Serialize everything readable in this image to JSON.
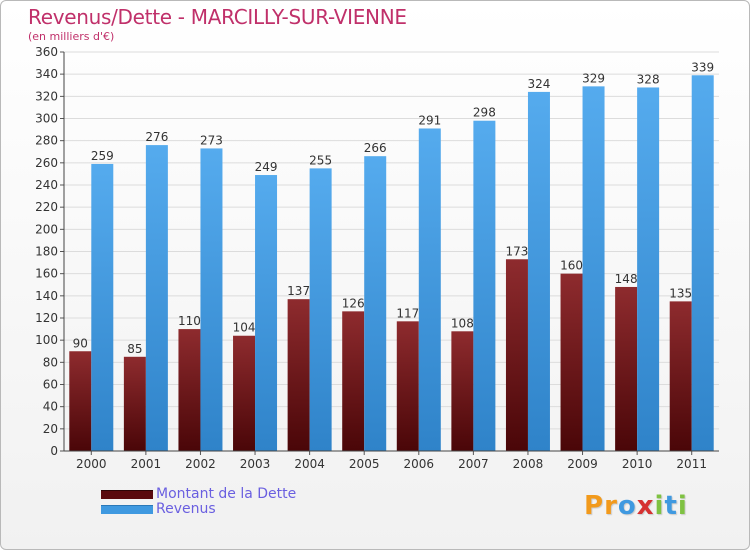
{
  "title": "Revenus/Dette - MARCILLY-SUR-VIENNE",
  "subtitle": "(en milliers d'€)",
  "colors": {
    "title": "#c0306a",
    "dette": "#7a1a1d",
    "revenus": "#3f99e0",
    "legend_text": "#6a5fe0"
  },
  "chart_data": {
    "type": "bar",
    "title": "Revenus/Dette - MARCILLY-SUR-VIENNE",
    "ylabel": "(en milliers d'€)",
    "ylim": [
      0,
      360
    ],
    "ytick_step": 20,
    "grid": true,
    "legend_position": "bottom-left",
    "categories": [
      "2000",
      "2001",
      "2002",
      "2003",
      "2004",
      "2005",
      "2006",
      "2007",
      "2008",
      "2009",
      "2010",
      "2011"
    ],
    "series": [
      {
        "name": "Montant de la Dette",
        "color": "#7a1a1d",
        "values": [
          90,
          85,
          110,
          104,
          137,
          126,
          117,
          108,
          173,
          160,
          148,
          135
        ]
      },
      {
        "name": "Revenus",
        "color": "#3f99e0",
        "values": [
          259,
          276,
          273,
          249,
          255,
          266,
          291,
          298,
          324,
          329,
          328,
          339
        ]
      }
    ]
  },
  "legend": {
    "items": [
      "Montant de la Dette",
      "Revenus"
    ]
  },
  "logo": {
    "text": "Proxiti",
    "letters": [
      "P",
      "r",
      "o",
      "x",
      "i",
      "t",
      "i"
    ],
    "colors": [
      "#f29a1c",
      "#f29a1c",
      "#3f99e0",
      "#d63131",
      "#7fc242",
      "#3f99e0",
      "#7fc242"
    ]
  }
}
